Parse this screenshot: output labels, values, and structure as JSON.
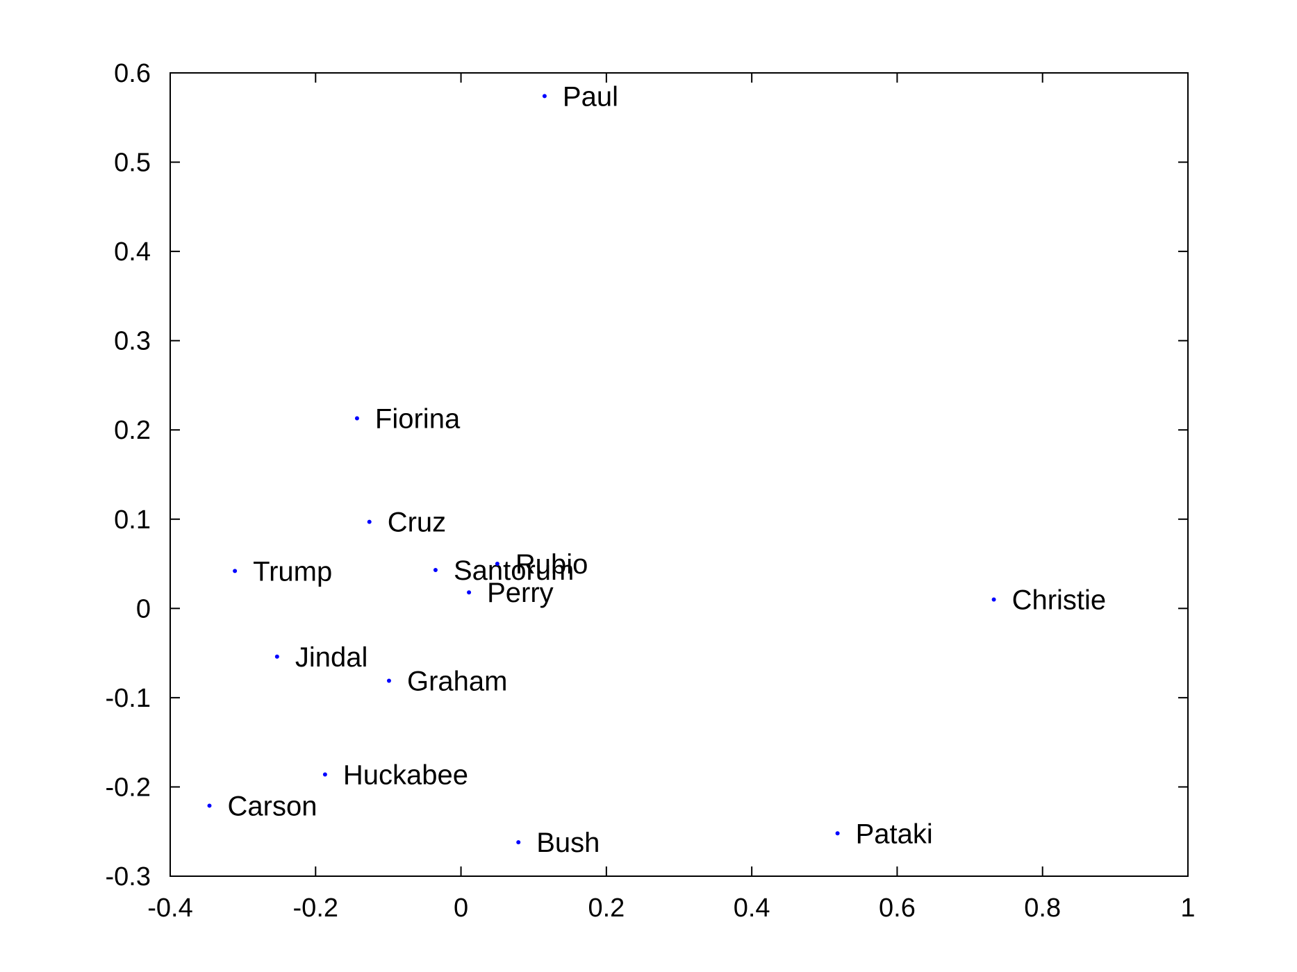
{
  "chart_data": {
    "type": "scatter",
    "title": "",
    "xlabel": "",
    "ylabel": "",
    "xlim": [
      -0.4,
      1
    ],
    "ylim": [
      -0.3,
      0.6
    ],
    "x_ticks": [
      -0.4,
      -0.2,
      0,
      0.2,
      0.4,
      0.6,
      0.8,
      1
    ],
    "x_tick_labels": [
      "-0.4",
      "-0.2",
      "0",
      "0.2",
      "0.4",
      "0.6",
      "0.8",
      "1"
    ],
    "y_ticks": [
      -0.3,
      -0.2,
      -0.1,
      0,
      0.1,
      0.2,
      0.3,
      0.4,
      0.5,
      0.6
    ],
    "y_tick_labels": [
      "-0.3",
      "-0.2",
      "-0.1",
      "0",
      "0.1",
      "0.2",
      "0.3",
      "0.4",
      "0.5",
      "0.6"
    ],
    "grid": false,
    "marker_color": "#0000ff",
    "text_color": "#000000",
    "points": [
      {
        "label": "Paul",
        "x": 0.115,
        "y": 0.574
      },
      {
        "label": "Fiorina",
        "x": -0.143,
        "y": 0.213
      },
      {
        "label": "Cruz",
        "x": -0.126,
        "y": 0.097
      },
      {
        "label": "Trump",
        "x": -0.311,
        "y": 0.042
      },
      {
        "label": "Santorum",
        "x": -0.035,
        "y": 0.043
      },
      {
        "label": "Rubio",
        "x": 0.05,
        "y": 0.05
      },
      {
        "label": "Perry",
        "x": 0.011,
        "y": 0.018
      },
      {
        "label": "Christie",
        "x": 0.733,
        "y": 0.01
      },
      {
        "label": "Jindal",
        "x": -0.253,
        "y": -0.054
      },
      {
        "label": "Graham",
        "x": -0.099,
        "y": -0.081
      },
      {
        "label": "Huckabee",
        "x": -0.187,
        "y": -0.186
      },
      {
        "label": "Carson",
        "x": -0.346,
        "y": -0.221
      },
      {
        "label": "Bush",
        "x": 0.079,
        "y": -0.262
      },
      {
        "label": "Pataki",
        "x": 0.518,
        "y": -0.252
      }
    ]
  }
}
